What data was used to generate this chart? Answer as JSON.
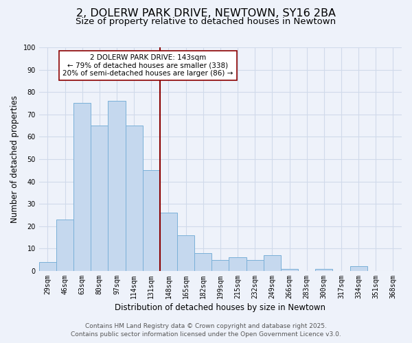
{
  "title": "2, DOLERW PARK DRIVE, NEWTOWN, SY16 2BA",
  "subtitle": "Size of property relative to detached houses in Newtown",
  "xlabel": "Distribution of detached houses by size in Newtown",
  "ylabel": "Number of detached properties",
  "categories": [
    "29sqm",
    "46sqm",
    "63sqm",
    "80sqm",
    "97sqm",
    "114sqm",
    "131sqm",
    "148sqm",
    "165sqm",
    "182sqm",
    "199sqm",
    "215sqm",
    "232sqm",
    "249sqm",
    "266sqm",
    "283sqm",
    "300sqm",
    "317sqm",
    "334sqm",
    "351sqm",
    "368sqm"
  ],
  "values": [
    4,
    23,
    75,
    65,
    76,
    65,
    45,
    26,
    16,
    8,
    5,
    6,
    5,
    7,
    1,
    0,
    1,
    0,
    2,
    0,
    0
  ],
  "bar_color": "#c5d8ee",
  "bar_edge_color": "#7ab0d8",
  "vline_x_index": 7,
  "vline_color": "#8b0000",
  "annotation_line1": "2 DOLERW PARK DRIVE: 143sqm",
  "annotation_line2": "← 79% of detached houses are smaller (338)",
  "annotation_line3": "20% of semi-detached houses are larger (86) →",
  "annotation_box_color": "#ffffff",
  "annotation_box_edge_color": "#8b0000",
  "ylim": [
    0,
    100
  ],
  "grid_color": "#d0daea",
  "bg_color": "#eef2fa",
  "footer_line1": "Contains HM Land Registry data © Crown copyright and database right 2025.",
  "footer_line2": "Contains public sector information licensed under the Open Government Licence v3.0.",
  "title_fontsize": 11.5,
  "subtitle_fontsize": 9.5,
  "axis_label_fontsize": 8.5,
  "tick_fontsize": 7,
  "annotation_fontsize": 7.5,
  "footer_fontsize": 6.5
}
